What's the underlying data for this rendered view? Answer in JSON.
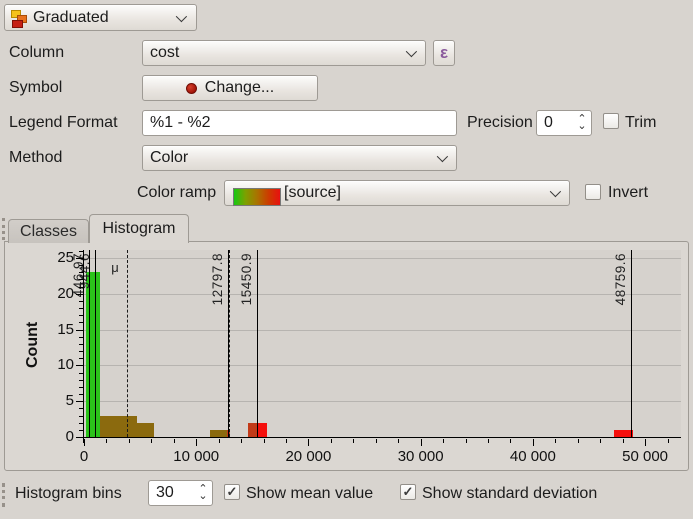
{
  "renderer_combo": {
    "label": "Graduated"
  },
  "rows": {
    "column": {
      "label": "Column",
      "value": "cost",
      "expression_button": "ε"
    },
    "symbol": {
      "label": "Symbol",
      "button": "Change..."
    },
    "legend": {
      "label": "Legend Format",
      "value": "%1 - %2",
      "precision_label": "Precision",
      "precision_value": "0",
      "trim_label": "Trim",
      "trim_checked": false
    },
    "method": {
      "label": "Method",
      "value": "Color"
    },
    "ramp": {
      "label": "Color ramp",
      "value": "[source]",
      "invert_label": "Invert",
      "invert_checked": false,
      "ramp_colors": [
        "#17c712",
        "#7da000",
        "#a97300",
        "#cc3c00",
        "#e81010"
      ]
    }
  },
  "tabs": [
    {
      "label": "Classes",
      "active": false
    },
    {
      "label": "Histogram",
      "active": true
    }
  ],
  "chart_data": {
    "type": "bar",
    "title": "",
    "xlabel": "",
    "ylabel": "Count",
    "grid": "horizontal",
    "xlim": [
      0,
      53200
    ],
    "ylim": [
      0,
      26.1
    ],
    "x_major_ticks": [
      {
        "value": 0,
        "label": "0"
      },
      {
        "value": 10000,
        "label": "10 000"
      },
      {
        "value": 20000,
        "label": "20 000"
      },
      {
        "value": 30000,
        "label": "30 000"
      },
      {
        "value": 40000,
        "label": "40 000"
      },
      {
        "value": 50000,
        "label": "50 000"
      }
    ],
    "x_minor_step": 2000,
    "y_major_ticks": [
      0,
      5,
      10,
      15,
      20,
      25
    ],
    "y_minor_step": 1,
    "bars": [
      {
        "x0": 150,
        "x1": 1450,
        "count": 23,
        "color": "#2bc31a"
      },
      {
        "x0": 1450,
        "x1": 4750,
        "count": 3,
        "color": "#8b6a0e"
      },
      {
        "x0": 4750,
        "x1": 6250,
        "count": 2,
        "color": "#8b6a0e"
      },
      {
        "x0": 11250,
        "x1": 12700,
        "count": 1,
        "color": "#8b6a0e"
      },
      {
        "x0": 12700,
        "x1": 13000,
        "count": 1,
        "color": "#c23a18"
      },
      {
        "x0": 14600,
        "x1": 15450,
        "count": 2,
        "color": "#c23a18"
      },
      {
        "x0": 15450,
        "x1": 16350,
        "count": 2,
        "color": "#f50f0c"
      },
      {
        "x0": 47200,
        "x1": 48900,
        "count": 1,
        "color": "#f50f0c"
      }
    ],
    "class_breaks": [
      {
        "value": 446.97,
        "label": "446.97"
      },
      {
        "value": 944.6,
        "label": "944.6"
      },
      {
        "value": 12797.8,
        "label": "12797.8"
      },
      {
        "value": 15450.9,
        "label": "15450.9"
      },
      {
        "value": 48759.6,
        "label": "48759.6"
      }
    ],
    "mean_line": {
      "value": 3850,
      "label": "μ"
    },
    "stddev_lines": [
      12950
    ]
  },
  "footer": {
    "bins_label": "Histogram bins",
    "bins_value": "30",
    "mean_label": "Show mean value",
    "mean_checked": true,
    "stddev_label": "Show standard deviation",
    "stddev_checked": true
  }
}
